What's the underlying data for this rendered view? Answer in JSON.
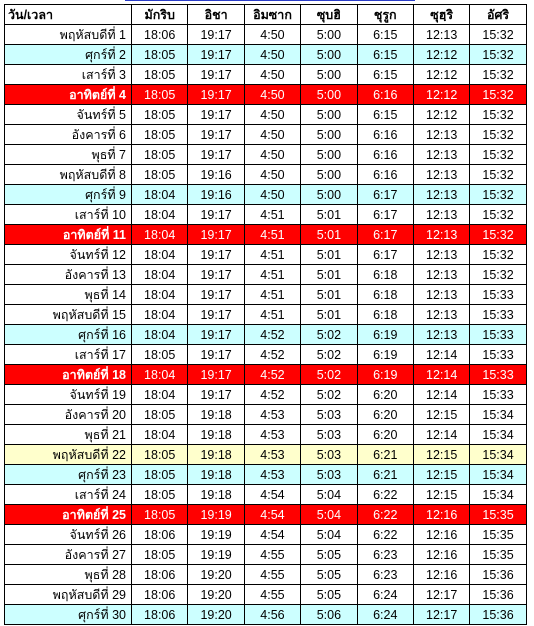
{
  "header": {
    "day_time": "วัน/เวลา",
    "prayers": [
      "มักริบ",
      "อิชา",
      "อิมซาก",
      "ซุบฮิ",
      "ชุรูก",
      "ซุฮฺริ",
      "อัศริ"
    ]
  },
  "colors": {
    "friday": "#ccffff",
    "sunday": "#ff0000",
    "highlight": "#ffffcc",
    "normal": "#ffffff"
  },
  "rows": [
    {
      "day": "พฤหัสบดีที่ 1",
      "style": "normal",
      "times": [
        "18:06",
        "19:17",
        "4:50",
        "5:00",
        "6:15",
        "12:13",
        "15:32"
      ]
    },
    {
      "day": "ศุกร์ที่ 2",
      "style": "cyan",
      "times": [
        "18:05",
        "19:17",
        "4:50",
        "5:00",
        "6:15",
        "12:12",
        "15:32"
      ]
    },
    {
      "day": "เสาร์ที่ 3",
      "style": "normal",
      "times": [
        "18:05",
        "19:17",
        "4:50",
        "5:00",
        "6:15",
        "12:12",
        "15:32"
      ]
    },
    {
      "day": "อาทิตย์ที่ 4",
      "style": "red",
      "times": [
        "18:05",
        "19:17",
        "4:50",
        "5:00",
        "6:16",
        "12:12",
        "15:32"
      ]
    },
    {
      "day": "จันทร์ที่ 5",
      "style": "normal",
      "times": [
        "18:05",
        "19:17",
        "4:50",
        "5:00",
        "6:15",
        "12:12",
        "15:32"
      ]
    },
    {
      "day": "อังคารที่ 6",
      "style": "normal",
      "times": [
        "18:05",
        "19:17",
        "4:50",
        "5:00",
        "6:16",
        "12:13",
        "15:32"
      ]
    },
    {
      "day": "พุธที่ 7",
      "style": "normal",
      "times": [
        "18:05",
        "19:17",
        "4:50",
        "5:00",
        "6:16",
        "12:13",
        "15:32"
      ]
    },
    {
      "day": "พฤหัสบดีที่ 8",
      "style": "normal",
      "times": [
        "18:05",
        "19:16",
        "4:50",
        "5:00",
        "6:16",
        "12:13",
        "15:32"
      ]
    },
    {
      "day": "ศุกร์ที่ 9",
      "style": "cyan",
      "times": [
        "18:04",
        "19:16",
        "4:50",
        "5:00",
        "6:17",
        "12:13",
        "15:32"
      ]
    },
    {
      "day": "เสาร์ที่ 10",
      "style": "normal",
      "times": [
        "18:04",
        "19:17",
        "4:51",
        "5:01",
        "6:17",
        "12:13",
        "15:32"
      ]
    },
    {
      "day": "อาทิตย์ที่ 11",
      "style": "red",
      "times": [
        "18:04",
        "19:17",
        "4:51",
        "5:01",
        "6:17",
        "12:13",
        "15:32"
      ]
    },
    {
      "day": "จันทร์ที่ 12",
      "style": "normal",
      "times": [
        "18:04",
        "19:17",
        "4:51",
        "5:01",
        "6:17",
        "12:13",
        "15:32"
      ]
    },
    {
      "day": "อังคารที่ 13",
      "style": "normal",
      "times": [
        "18:04",
        "19:17",
        "4:51",
        "5:01",
        "6:18",
        "12:13",
        "15:32"
      ]
    },
    {
      "day": "พุธที่ 14",
      "style": "normal",
      "times": [
        "18:04",
        "19:17",
        "4:51",
        "5:01",
        "6:18",
        "12:13",
        "15:33"
      ]
    },
    {
      "day": "พฤหัสบดีที่ 15",
      "style": "normal",
      "times": [
        "18:04",
        "19:17",
        "4:51",
        "5:01",
        "6:18",
        "12:13",
        "15:33"
      ]
    },
    {
      "day": "ศุกร์ที่ 16",
      "style": "cyan",
      "times": [
        "18:04",
        "19:17",
        "4:52",
        "5:02",
        "6:19",
        "12:13",
        "15:33"
      ]
    },
    {
      "day": "เสาร์ที่ 17",
      "style": "normal",
      "times": [
        "18:05",
        "19:17",
        "4:52",
        "5:02",
        "6:19",
        "12:14",
        "15:33"
      ]
    },
    {
      "day": "อาทิตย์ที่ 18",
      "style": "red",
      "times": [
        "18:04",
        "19:17",
        "4:52",
        "5:02",
        "6:19",
        "12:14",
        "15:33"
      ]
    },
    {
      "day": "จันทร์ที่ 19",
      "style": "normal",
      "times": [
        "18:04",
        "19:17",
        "4:52",
        "5:02",
        "6:20",
        "12:14",
        "15:33"
      ]
    },
    {
      "day": "อังคารที่ 20",
      "style": "normal",
      "times": [
        "18:05",
        "19:18",
        "4:53",
        "5:03",
        "6:20",
        "12:15",
        "15:34"
      ]
    },
    {
      "day": "พุธที่ 21",
      "style": "normal",
      "times": [
        "18:04",
        "19:18",
        "4:53",
        "5:03",
        "6:20",
        "12:14",
        "15:34"
      ]
    },
    {
      "day": "พฤหัสบดีที่ 22",
      "style": "yellow",
      "times": [
        "18:05",
        "19:18",
        "4:53",
        "5:03",
        "6:21",
        "12:15",
        "15:34"
      ]
    },
    {
      "day": "ศุกร์ที่ 23",
      "style": "cyan",
      "times": [
        "18:05",
        "19:18",
        "4:53",
        "5:03",
        "6:21",
        "12:15",
        "15:34"
      ]
    },
    {
      "day": "เสาร์ที่ 24",
      "style": "normal",
      "times": [
        "18:05",
        "19:18",
        "4:54",
        "5:04",
        "6:22",
        "12:15",
        "15:34"
      ]
    },
    {
      "day": "อาทิตย์ที่ 25",
      "style": "red",
      "times": [
        "18:05",
        "19:19",
        "4:54",
        "5:04",
        "6:22",
        "12:16",
        "15:35"
      ]
    },
    {
      "day": "จันทร์ที่ 26",
      "style": "normal",
      "times": [
        "18:06",
        "19:19",
        "4:54",
        "5:04",
        "6:22",
        "12:16",
        "15:35"
      ]
    },
    {
      "day": "อังคารที่ 27",
      "style": "normal",
      "times": [
        "18:05",
        "19:19",
        "4:55",
        "5:05",
        "6:23",
        "12:16",
        "15:35"
      ]
    },
    {
      "day": "พุธที่ 28",
      "style": "normal",
      "times": [
        "18:06",
        "19:20",
        "4:55",
        "5:05",
        "6:23",
        "12:16",
        "15:36"
      ]
    },
    {
      "day": "พฤหัสบดีที่ 29",
      "style": "normal",
      "times": [
        "18:06",
        "19:20",
        "4:55",
        "5:05",
        "6:24",
        "12:17",
        "15:36"
      ]
    },
    {
      "day": "ศุกร์ที่ 30",
      "style": "cyan",
      "times": [
        "18:06",
        "19:20",
        "4:56",
        "5:06",
        "6:24",
        "12:17",
        "15:36"
      ]
    }
  ]
}
